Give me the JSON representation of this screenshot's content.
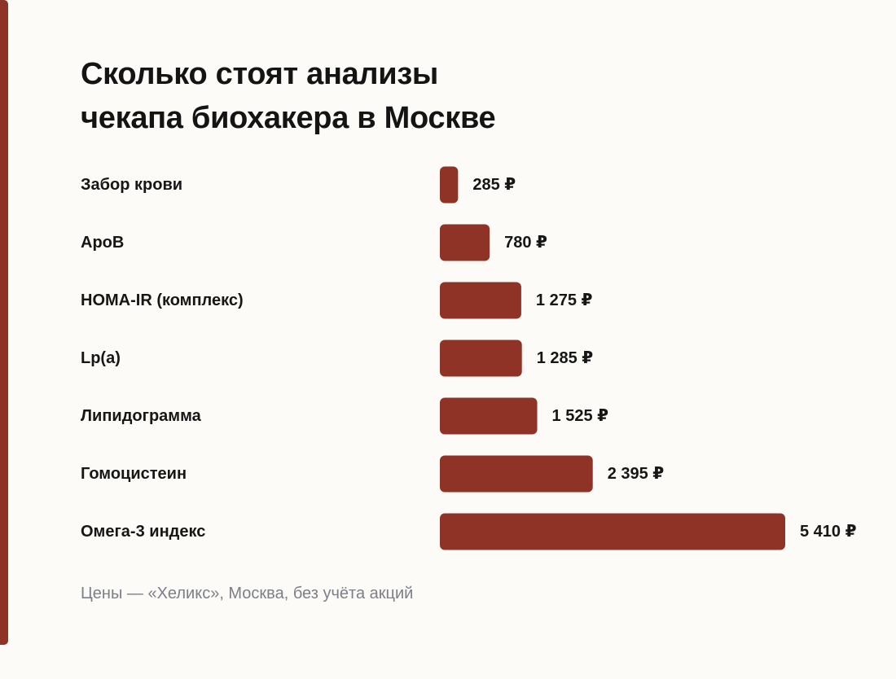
{
  "title_lines": [
    "Сколько стоят анализы",
    "чекапа биохакера в Москве"
  ],
  "source": "Цены — «Хеликс», Москва, без учёта акций",
  "colors": {
    "bar": "#8e3325",
    "accent_stripe": "#8e3325",
    "background": "#fcfbf8",
    "text": "#161616",
    "source_text": "#7e7e86"
  },
  "chart_data": {
    "type": "bar",
    "orientation": "horizontal",
    "categories": [
      "Забор крови",
      "ApoB",
      "HOMA-IR (комплекс)",
      "Lp(a)",
      "Липидограмма",
      "Гомоцистеин",
      "Омега-3 индекс"
    ],
    "values": [
      285,
      780,
      1275,
      1285,
      1525,
      2395,
      5410
    ],
    "value_labels": [
      "285 ₽",
      "780 ₽",
      "1 275 ₽",
      "1 285 ₽",
      "1 525 ₽",
      "2 395 ₽",
      "5 410 ₽"
    ],
    "grid": false,
    "legend": "none"
  }
}
